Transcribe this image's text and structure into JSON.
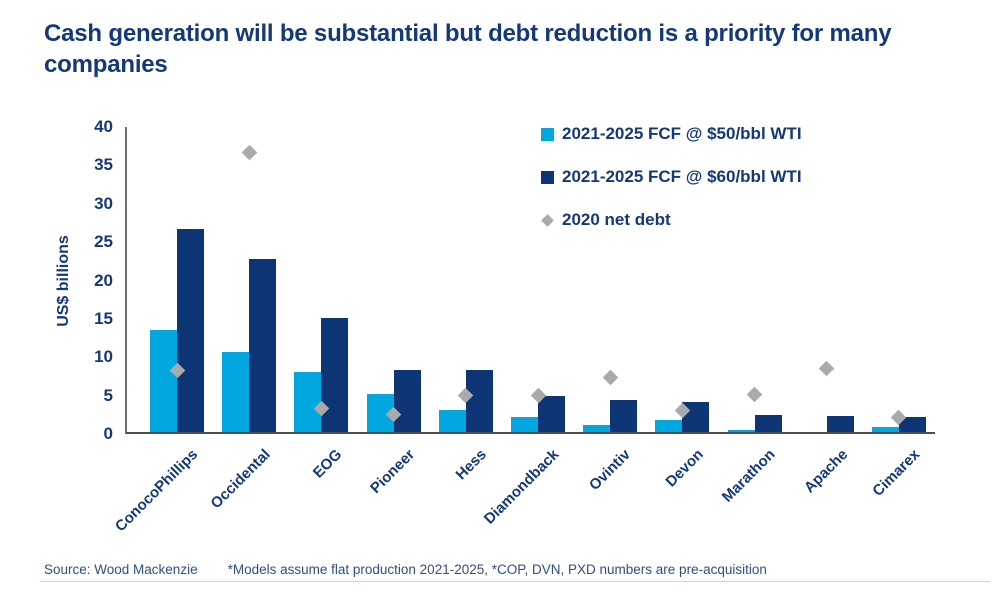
{
  "title": "Cash generation will be substantial but debt reduction is a priority for many companies",
  "colors": {
    "title_text": "#14387A",
    "axis_text": "#14387A",
    "fcf50_bar": "#00A7E0",
    "fcf60_bar": "#0D3576",
    "net_debt_marker": "#A8AAAD",
    "axis_line": "#6f6f6f",
    "footer_text": "#2F4E87"
  },
  "chart_data": {
    "type": "bar",
    "title": "Cash generation will be substantial but debt reduction is a priority for many companies",
    "xlabel": "",
    "ylabel": "US$ billions",
    "ylim": [
      0,
      40
    ],
    "yticks": [
      0,
      5,
      10,
      15,
      20,
      25,
      30,
      35,
      40
    ],
    "grid": false,
    "legend_position": "top-right-inside",
    "categories": [
      "ConocoPhillips",
      "Occidental",
      "EOG",
      "Pioneer",
      "Hess",
      "Diamondback",
      "Ovintiv",
      "Devon",
      "Marathon",
      "Apache",
      "Cimarex"
    ],
    "series": [
      {
        "name": "2021-2025 FCF @ $50/bbl WTI",
        "type": "bar",
        "marker": "square",
        "color": "#00A7E0",
        "values": [
          13.3,
          10.4,
          7.8,
          4.9,
          2.9,
          2.0,
          0.9,
          1.6,
          0.3,
          0.0,
          0.7
        ]
      },
      {
        "name": "2021-2025 FCF @ $60/bbl WTI",
        "type": "bar",
        "marker": "square",
        "color": "#0D3576",
        "values": [
          26.4,
          22.5,
          14.8,
          8.1,
          8.1,
          4.7,
          4.2,
          3.9,
          2.2,
          2.1,
          2.0
        ]
      },
      {
        "name": "2020 net debt",
        "type": "scatter",
        "marker": "diamond",
        "color": "#A8AAAD",
        "values": [
          8.0,
          36.4,
          3.1,
          2.3,
          4.7,
          4.8,
          7.1,
          2.8,
          4.9,
          8.3,
          1.9
        ]
      }
    ]
  },
  "footer": {
    "source": "Source: Wood Mackenzie",
    "note": "*Models assume flat production 2021-2025, *COP, DVN, PXD numbers are pre-acquisition"
  }
}
